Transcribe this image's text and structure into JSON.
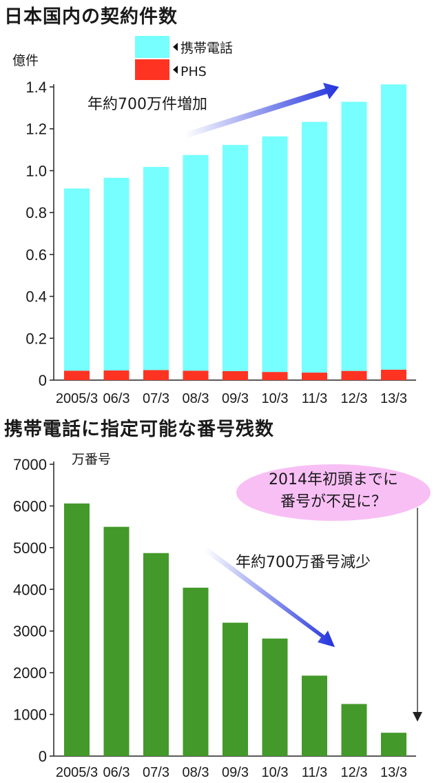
{
  "chart_data": [
    {
      "type": "bar",
      "title": "日本国内の契約件数",
      "ylabel": "億件",
      "ylim": [
        0,
        1.4
      ],
      "yticks": [
        "0",
        "0.2",
        "0.4",
        "0.6",
        "0.8",
        "1.0",
        "1.2",
        "1.4"
      ],
      "categories": [
        "2005/3",
        "06/3",
        "07/3",
        "08/3",
        "09/3",
        "10/3",
        "11/3",
        "12/3",
        "13/3"
      ],
      "stacked": true,
      "series": [
        {
          "name": "PHS",
          "color": "#ff3322",
          "values": [
            0.045,
            0.046,
            0.048,
            0.045,
            0.043,
            0.039,
            0.036,
            0.044,
            0.05
          ]
        },
        {
          "name": "携帯電話",
          "color": "#77ffff",
          "values": [
            0.87,
            0.92,
            0.97,
            1.03,
            1.08,
            1.125,
            1.197,
            1.285,
            1.362
          ]
        }
      ],
      "legend": "top",
      "annotation": "年約700万件増加"
    },
    {
      "type": "bar",
      "title": "携帯電話に指定可能な番号残数",
      "ylabel": "万番号",
      "ylim": [
        0,
        7000
      ],
      "yticks": [
        "0",
        "1000",
        "2000",
        "3000",
        "4000",
        "5000",
        "6000",
        "7000"
      ],
      "categories": [
        "2005/3",
        "06/3",
        "07/3",
        "08/3",
        "09/3",
        "10/3",
        "11/3",
        "12/3",
        "13/3"
      ],
      "series": [
        {
          "color": "#43992a",
          "values": [
            6060,
            5500,
            4870,
            4040,
            3200,
            2820,
            1930,
            1250,
            560
          ]
        }
      ],
      "annotation": "年約700万番号減少",
      "callout": "2014年初頭までに番号が不足に？",
      "callout_lines": [
        "2014年初頭までに",
        "番号が不足に？"
      ]
    }
  ]
}
